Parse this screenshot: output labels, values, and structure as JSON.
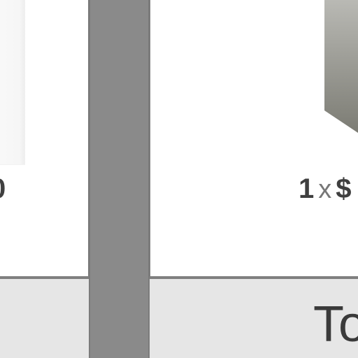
{
  "left_column": {
    "price_text": "0"
  },
  "right_column": {
    "quantity": "1",
    "times_symbol": "x",
    "price_fragment": "$"
  },
  "footer": {
    "total_label": "To"
  },
  "colors": {
    "divider": "#8a8a8a",
    "footer_background": "#e6e6e6",
    "footer_border": "#7f7f7f",
    "price_text": "#404040"
  },
  "icons": {
    "product_image": "product-thumbnail-icon"
  }
}
